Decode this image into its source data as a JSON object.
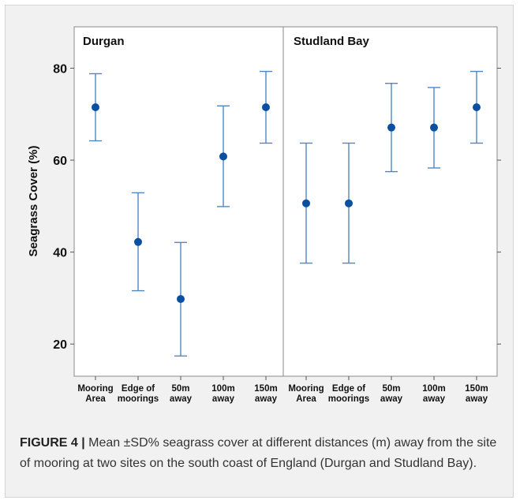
{
  "figure": {
    "label": "FIGURE 4 |",
    "caption": " Mean ±SD% seagrass cover at different distances (m) away from the site of mooring at two sites on the south coast of England (Durgan and Studland Bay)."
  },
  "colors": {
    "marker": "#0b4fa0",
    "errorbar": "#4f87c3",
    "panel_background": "#f1f1f1",
    "plot_background": "#ffffff",
    "frame": "#8a8a8a"
  },
  "chart_data": {
    "type": "scatter",
    "subtype": "errorbar",
    "ylabel": "Seagrass Cover (%)",
    "ylim": [
      13,
      89
    ],
    "yticks": [
      20,
      40,
      60,
      80
    ],
    "grid": false,
    "legend": "none",
    "categories": [
      [
        "Mooring",
        "Area"
      ],
      [
        "Edge of",
        "moorings"
      ],
      [
        "50m",
        "away"
      ],
      [
        "100m",
        "away"
      ],
      [
        "150m",
        "away"
      ]
    ],
    "panels": [
      {
        "title": "Durgan",
        "means": [
          71.5,
          42.2,
          29.8,
          60.8,
          71.5
        ],
        "lower": [
          64.2,
          31.6,
          17.4,
          49.9,
          63.7
        ],
        "upper": [
          78.8,
          52.9,
          42.1,
          71.8,
          79.3
        ]
      },
      {
        "title": "Studland Bay",
        "means": [
          50.6,
          50.6,
          67.1,
          67.1,
          71.5
        ],
        "lower": [
          37.6,
          37.6,
          57.5,
          58.3,
          63.7
        ],
        "upper": [
          63.7,
          63.7,
          76.7,
          75.8,
          79.3
        ]
      }
    ]
  }
}
